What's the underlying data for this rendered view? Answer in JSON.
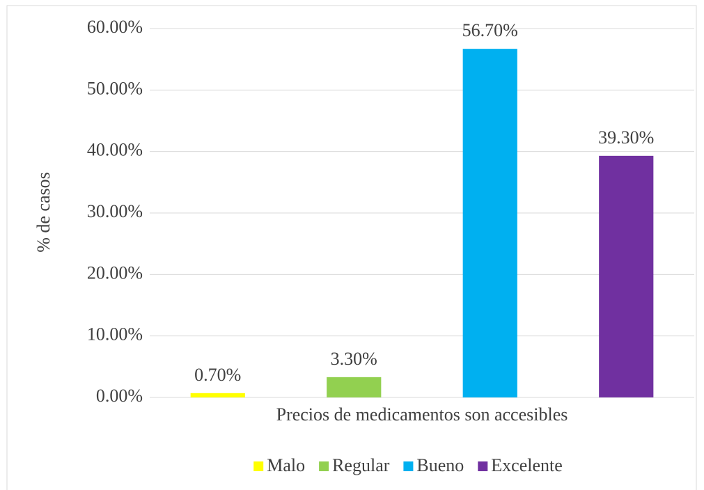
{
  "chart_data": {
    "type": "bar",
    "categories": [
      "Precios de medicamentos son accesibles"
    ],
    "y_label": "% de casos",
    "series": [
      {
        "name": "Malo",
        "color": "#ffff00",
        "values": [
          0.7
        ],
        "value_labels": [
          "0.70%"
        ]
      },
      {
        "name": "Regular",
        "color": "#92d050",
        "values": [
          3.3
        ],
        "value_labels": [
          "3.30%"
        ]
      },
      {
        "name": "Bueno",
        "color": "#00b0f0",
        "values": [
          56.7
        ],
        "value_labels": [
          "56.70%"
        ]
      },
      {
        "name": "Excelente",
        "color": "#7030a0",
        "values": [
          39.3
        ],
        "value_labels": [
          "39.30%"
        ]
      }
    ],
    "ylim": [
      0,
      60
    ],
    "yticks": [
      {
        "value": 0,
        "label": "0.00%"
      },
      {
        "value": 10,
        "label": "10.00%"
      },
      {
        "value": 20,
        "label": "20.00%"
      },
      {
        "value": 30,
        "label": "30.00%"
      },
      {
        "value": 40,
        "label": "40.00%"
      },
      {
        "value": 50,
        "label": "50.00%"
      },
      {
        "value": 60,
        "label": "60.00%"
      }
    ],
    "grid": true,
    "legend": "bottom"
  }
}
